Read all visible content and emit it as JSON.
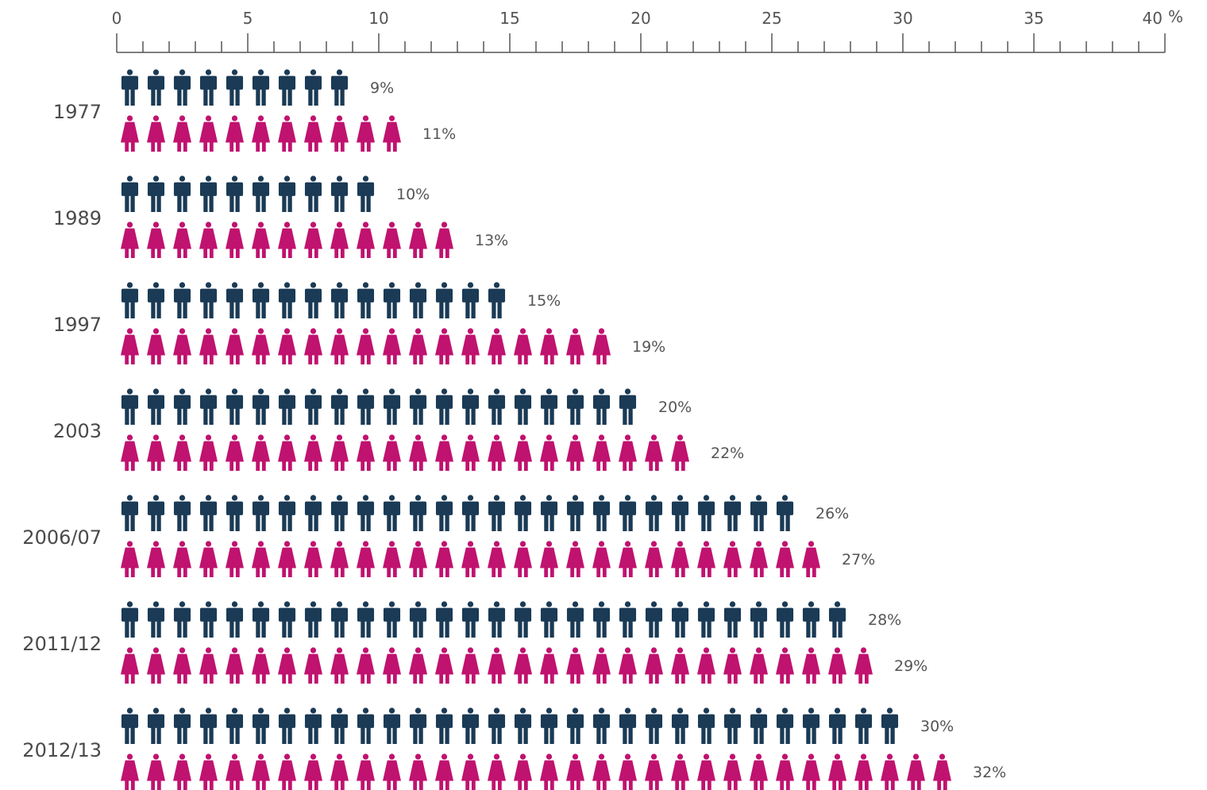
{
  "chart_data": {
    "type": "bar",
    "style": "pictogram",
    "x_axis": {
      "position": "top",
      "ticks": [
        0,
        5,
        10,
        15,
        20,
        25,
        30,
        35,
        40
      ],
      "tick_labels": [
        "0",
        "5",
        "10",
        "15",
        "20",
        "25",
        "30",
        "35",
        "40"
      ],
      "unit": "%",
      "range": [
        0,
        40
      ],
      "minor_tick_step": 1
    },
    "categories": [
      "1977",
      "1989",
      "1997",
      "2003",
      "2006/07",
      "2011/12",
      "2012/13"
    ],
    "series": [
      {
        "icon": "man-icon",
        "color": "#1a3a55",
        "values": [
          9,
          10,
          15,
          20,
          26,
          28,
          30
        ],
        "labels": [
          "9%",
          "10%",
          "15%",
          "20%",
          "26%",
          "28%",
          "30%"
        ]
      },
      {
        "icon": "woman-icon",
        "color": "#c0126f",
        "values": [
          11,
          13,
          19,
          22,
          27,
          29,
          32
        ],
        "labels": [
          "11%",
          "13%",
          "19%",
          "22%",
          "27%",
          "29%",
          "32%"
        ]
      }
    ],
    "grid": false,
    "legend": "none"
  }
}
